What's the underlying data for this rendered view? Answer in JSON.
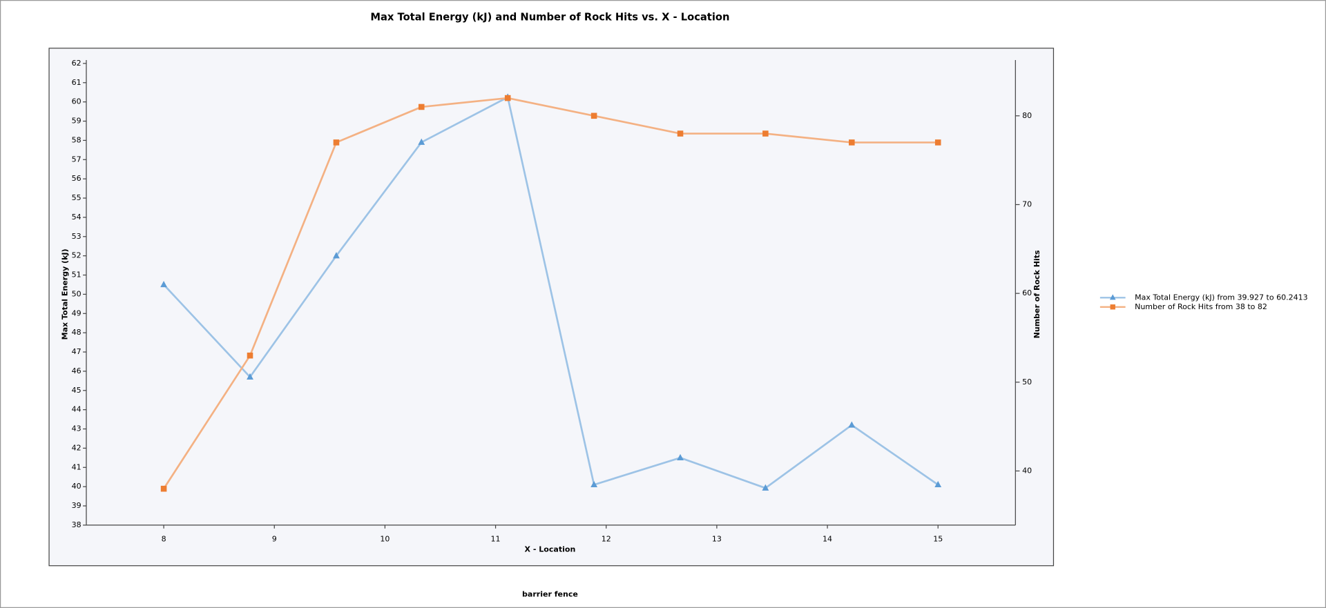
{
  "chart_data": {
    "type": "line",
    "title": "Max Total Energy (kJ) and Number of Rock Hits vs. X - Location",
    "xlabel": "X - Location",
    "ylabel": "Max Total Energy (kJ)",
    "y2label": "Number of Rock Hits",
    "footer": "barrier fence",
    "x": [
      8,
      8.78,
      9.56,
      10.33,
      11.11,
      11.89,
      12.67,
      13.44,
      14.22,
      15
    ],
    "xlim": [
      7.3,
      15.7
    ],
    "xticks": [
      8,
      9,
      10,
      11,
      12,
      13,
      14,
      15
    ],
    "ylim": [
      38,
      62
    ],
    "yticks": [
      38,
      39,
      40,
      41,
      42,
      43,
      44,
      45,
      46,
      47,
      48,
      49,
      50,
      51,
      52,
      53,
      54,
      55,
      56,
      57,
      58,
      59,
      60,
      61,
      62
    ],
    "y2lim": [
      33.9,
      85.9
    ],
    "y2ticks": [
      40,
      50,
      60,
      70,
      80
    ],
    "legend": "right",
    "series": [
      {
        "name": "Max Total Energy (kJ) from 39.927 to 60.2413",
        "color": "#9dc3e6",
        "marker_color": "#5b9bd5",
        "marker": "triangle",
        "values": [
          50.5,
          45.7,
          52.0,
          57.9,
          60.2413,
          40.1,
          41.5,
          39.927,
          43.2,
          40.1
        ]
      },
      {
        "name": "Number of Rock Hits from 38 to 82",
        "color": "#f4b183",
        "marker_color": "#ed7d31",
        "marker": "square",
        "axis": "y2",
        "values": [
          38,
          53,
          77,
          81,
          82,
          80,
          78,
          78,
          77,
          77
        ]
      }
    ]
  }
}
